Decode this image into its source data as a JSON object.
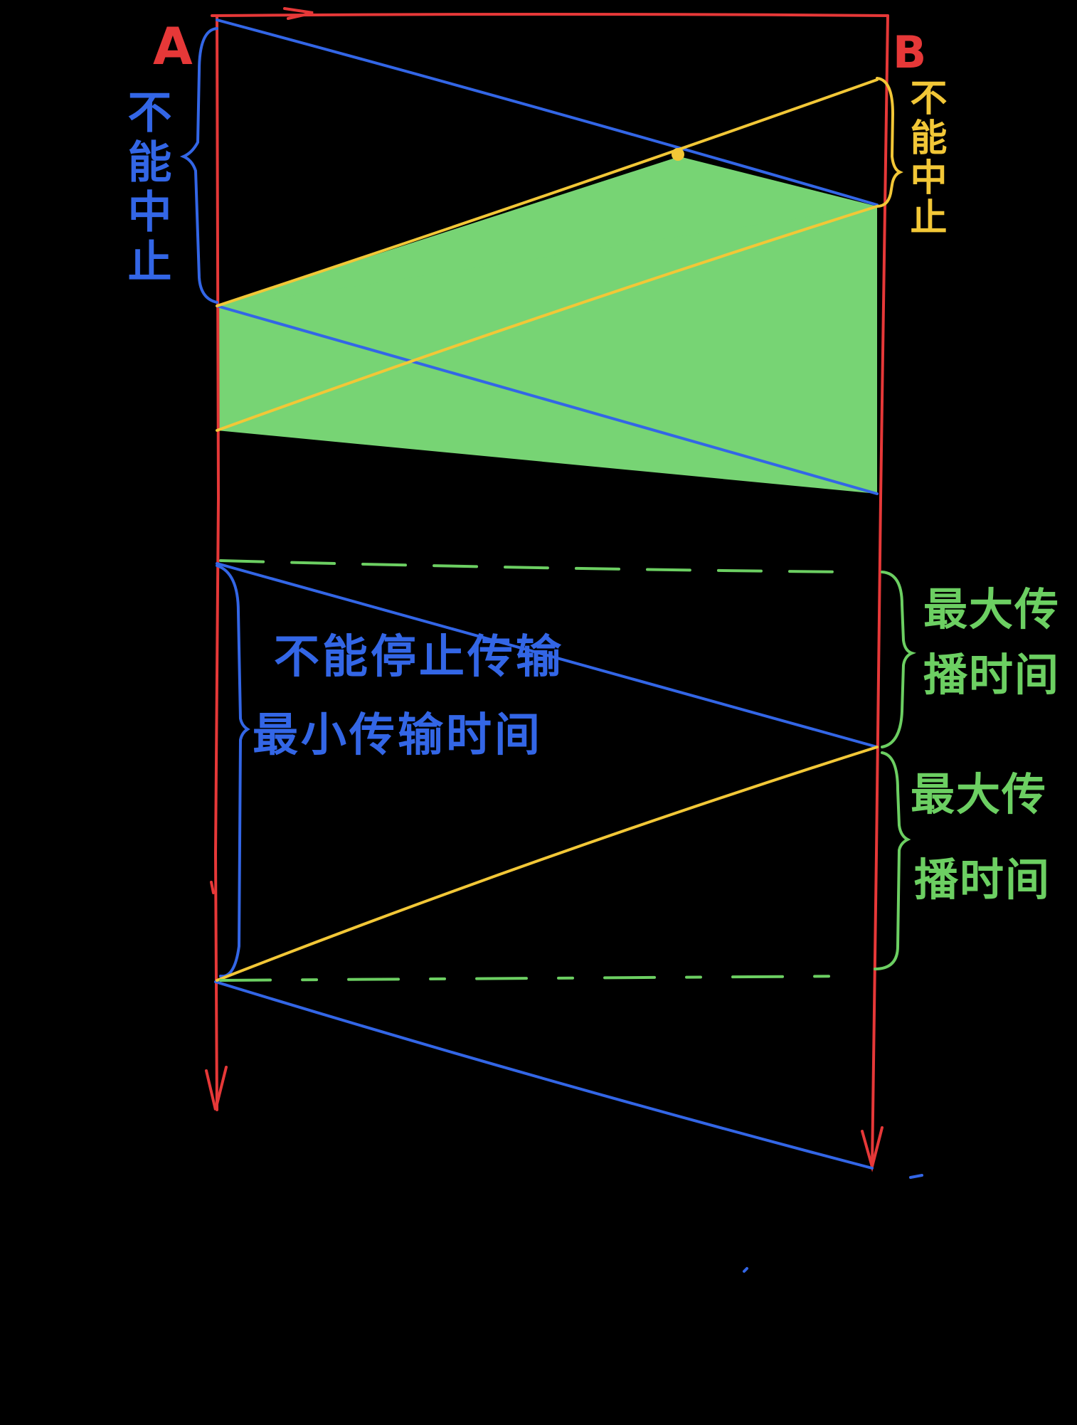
{
  "colors": {
    "background": "#000000",
    "axis": "#e63838",
    "blue": "#3366e6",
    "yellow": "#f2c737",
    "green_fill": "#77d474",
    "green_line": "#6ccf62"
  },
  "stations": {
    "a": "A",
    "b": "B"
  },
  "labels": {
    "a_cannot_abort": "不能中止",
    "b_cannot_abort": "不能中止",
    "min_tx_time_line1": "不能停止传输",
    "min_tx_time_line2": "最小传输时间",
    "max_prop_time_1_line1": "最大传",
    "max_prop_time_1_line2": "播时间",
    "max_prop_time_2_line1": "最大传",
    "max_prop_time_2_line2": "播时间"
  }
}
